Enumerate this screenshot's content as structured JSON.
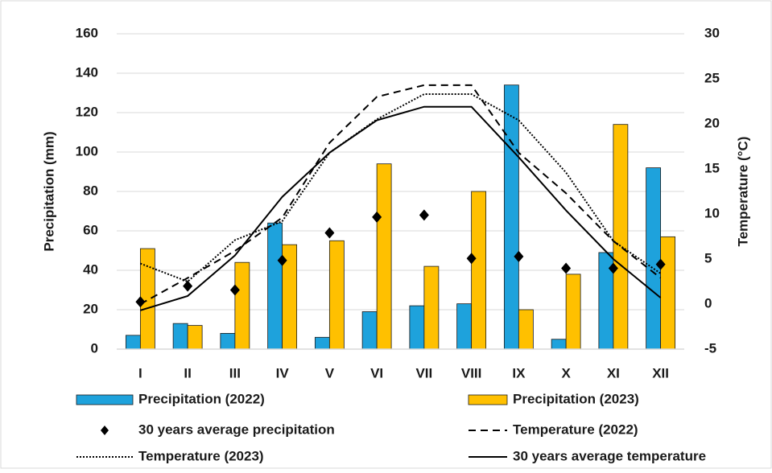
{
  "chart_data": {
    "type": "bar",
    "y_label": "Precipitation (mm)",
    "y2_label": "Temperature (°C)",
    "categories": [
      "I",
      "II",
      "III",
      "IV",
      "V",
      "VI",
      "VII",
      "VIII",
      "IX",
      "X",
      "XI",
      "XII"
    ],
    "series": [
      {
        "name": "Precipitation (2022)",
        "type": "bar",
        "color": "#1ea2dc",
        "values": [
          7,
          13,
          8,
          64,
          6,
          19,
          22,
          23,
          134,
          5,
          49,
          92
        ]
      },
      {
        "name": "Precipitation (2023)",
        "type": "bar",
        "color": "#ffc000",
        "values": [
          51,
          12,
          44,
          53,
          55,
          94,
          42,
          80,
          20,
          38,
          114,
          57
        ]
      },
      {
        "name": "30 years average precipitation",
        "type": "scatter",
        "color": "#000000",
        "values": [
          24,
          32,
          30,
          45,
          59,
          67,
          68,
          46,
          47,
          41,
          41,
          43
        ]
      },
      {
        "name": "Temperature (2022)",
        "type": "line",
        "line_style": "dashed",
        "axis": "y2",
        "color": "#000000",
        "values": [
          0.0,
          2.9,
          5.9,
          9.6,
          17.9,
          23.0,
          24.3,
          24.3,
          16.8,
          12.3,
          7.0,
          2.9
        ]
      },
      {
        "name": "Temperature (2023)",
        "type": "line",
        "line_style": "dotted",
        "axis": "y2",
        "color": "#000000",
        "values": [
          4.5,
          2.5,
          7.1,
          9.2,
          16.8,
          20.5,
          23.3,
          23.3,
          20.4,
          14.6,
          7.0,
          3.4
        ]
      },
      {
        "name": "30 years average temperature",
        "type": "line",
        "line_style": "solid",
        "axis": "y2",
        "color": "#000000",
        "values": [
          -0.7,
          0.9,
          5.4,
          11.9,
          16.8,
          20.4,
          21.9,
          21.9,
          16.3,
          10.4,
          5.0,
          0.7
        ]
      }
    ],
    "ylim": [
      0,
      160
    ],
    "yticks": [
      0,
      20,
      40,
      60,
      80,
      100,
      120,
      140,
      160
    ],
    "y2lim": [
      -5,
      30
    ],
    "y2ticks": [
      -5,
      0,
      5,
      10,
      15,
      20,
      25,
      30
    ],
    "grid": true,
    "legend": "bottom"
  }
}
